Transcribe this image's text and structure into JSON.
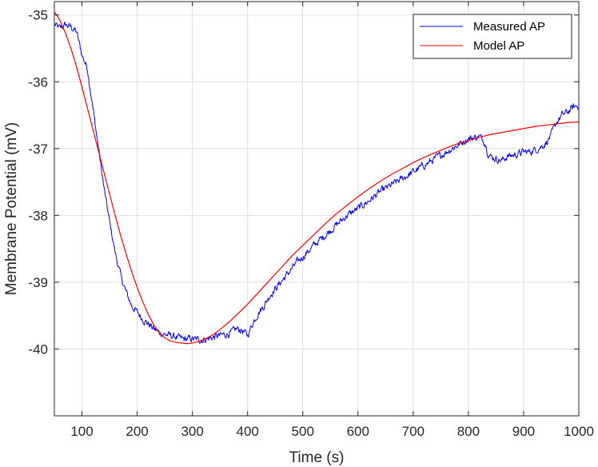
{
  "chart_data": {
    "type": "line",
    "title": "",
    "xlabel": "Time (s)",
    "ylabel": "Membrane Potential (mV)",
    "xlim": [
      50,
      1000
    ],
    "ylim": [
      -41,
      -34.8
    ],
    "xticks": [
      100,
      200,
      300,
      400,
      500,
      600,
      700,
      800,
      900,
      1000
    ],
    "yticks": [
      -40,
      -39,
      -38,
      -37,
      -36,
      -35
    ],
    "x_tick_labels": [
      "100",
      "200",
      "300",
      "400",
      "500",
      "600",
      "700",
      "800",
      "900",
      "1000"
    ],
    "y_tick_labels": [
      "-40",
      "-39",
      "-38",
      "-37",
      "-36",
      "-35"
    ],
    "grid": true,
    "legend_position": "top-right",
    "series": [
      {
        "name": "Measured AP",
        "color": "#0000ff",
        "style": "noisy",
        "x": [
          50,
          60,
          70,
          80,
          90,
          100,
          110,
          120,
          130,
          140,
          150,
          160,
          170,
          180,
          190,
          200,
          210,
          220,
          230,
          240,
          250,
          260,
          270,
          280,
          290,
          300,
          310,
          320,
          330,
          340,
          350,
          360,
          370,
          380,
          390,
          400,
          410,
          420,
          430,
          440,
          450,
          460,
          470,
          480,
          490,
          500,
          520,
          540,
          560,
          580,
          600,
          620,
          640,
          660,
          680,
          700,
          720,
          740,
          760,
          780,
          800,
          820,
          830,
          835,
          840,
          850,
          860,
          870,
          880,
          890,
          900,
          910,
          920,
          930,
          940,
          950,
          960,
          970,
          980,
          990,
          1000
        ],
        "y": [
          -35.15,
          -35.2,
          -35.15,
          -35.18,
          -35.25,
          -35.6,
          -35.8,
          -36.4,
          -37.0,
          -37.6,
          -38.1,
          -38.55,
          -38.9,
          -39.15,
          -39.35,
          -39.45,
          -39.55,
          -39.62,
          -39.7,
          -39.75,
          -39.78,
          -39.8,
          -39.82,
          -39.85,
          -39.85,
          -39.85,
          -39.86,
          -39.86,
          -39.84,
          -39.82,
          -39.8,
          -39.78,
          -39.76,
          -39.7,
          -39.72,
          -39.8,
          -39.6,
          -39.45,
          -39.35,
          -39.2,
          -39.1,
          -39.0,
          -38.9,
          -38.8,
          -38.7,
          -38.62,
          -38.45,
          -38.3,
          -38.15,
          -38.0,
          -37.9,
          -37.78,
          -37.65,
          -37.55,
          -37.45,
          -37.35,
          -37.25,
          -37.15,
          -37.05,
          -36.95,
          -36.85,
          -36.82,
          -36.9,
          -37.05,
          -37.12,
          -37.15,
          -37.18,
          -37.12,
          -37.1,
          -37.08,
          -37.05,
          -37.05,
          -37.02,
          -36.98,
          -36.92,
          -36.8,
          -36.6,
          -36.5,
          -36.45,
          -36.38,
          -36.35
        ]
      },
      {
        "name": "Model AP",
        "color": "#ff0000",
        "style": "smooth",
        "x": [
          50,
          60,
          70,
          80,
          90,
          100,
          110,
          120,
          130,
          140,
          150,
          160,
          170,
          180,
          190,
          200,
          210,
          220,
          230,
          240,
          250,
          260,
          270,
          280,
          290,
          300,
          310,
          320,
          330,
          340,
          350,
          360,
          370,
          380,
          390,
          400,
          410,
          420,
          430,
          440,
          450,
          460,
          470,
          480,
          490,
          500,
          520,
          540,
          560,
          580,
          600,
          620,
          640,
          660,
          680,
          700,
          720,
          740,
          760,
          780,
          800,
          820,
          840,
          860,
          880,
          900,
          920,
          940,
          960,
          980,
          1000
        ],
        "y": [
          -34.95,
          -35.08,
          -35.27,
          -35.5,
          -35.77,
          -36.08,
          -36.4,
          -36.72,
          -37.04,
          -37.36,
          -37.68,
          -38.0,
          -38.3,
          -38.58,
          -38.84,
          -39.08,
          -39.29,
          -39.48,
          -39.64,
          -39.76,
          -39.83,
          -39.88,
          -39.9,
          -39.91,
          -39.92,
          -39.91,
          -39.89,
          -39.86,
          -39.82,
          -39.77,
          -39.71,
          -39.64,
          -39.57,
          -39.49,
          -39.41,
          -39.33,
          -39.24,
          -39.15,
          -39.06,
          -38.97,
          -38.88,
          -38.79,
          -38.7,
          -38.61,
          -38.53,
          -38.45,
          -38.29,
          -38.13,
          -37.98,
          -37.85,
          -37.72,
          -37.6,
          -37.49,
          -37.39,
          -37.3,
          -37.21,
          -37.13,
          -37.06,
          -36.99,
          -36.93,
          -36.88,
          -36.83,
          -36.79,
          -36.76,
          -36.73,
          -36.7,
          -36.67,
          -36.65,
          -36.63,
          -36.61,
          -36.6
        ]
      }
    ]
  }
}
